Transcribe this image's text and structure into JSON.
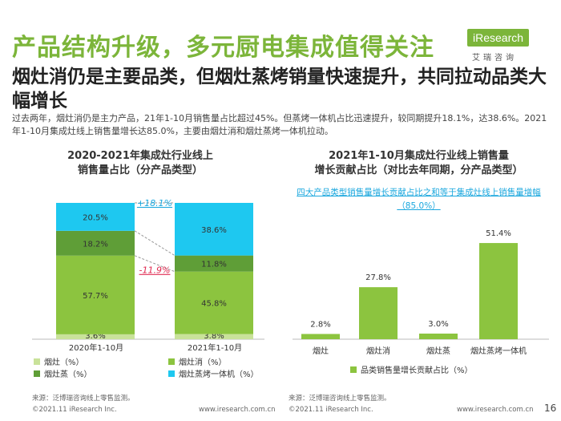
{
  "page": {
    "title": "产品结构升级，多元厨电集成值得关注",
    "subtitle": "烟灶消仍是主要品类，但烟灶蒸烤销量快速提升，共同拉动品类大幅增长",
    "description": "过去两年，烟灶消仍是主力产品，21年1-10月销售量占比超过45%。但蒸烤一体机占比迅速提升，较同期提升18.1%，达38.6%。2021年1-10月集成灶线上销售量增长达85.0%，主要由烟灶消和烟灶蒸烤一体机拉动。",
    "page_number": "16"
  },
  "logo": {
    "text": "iResearch",
    "cn": "艾瑞咨询"
  },
  "footer": {
    "copyright_left": "©2021.11 iResearch Inc.",
    "url_left": "www.iresearch.com.cn",
    "copyright_right": "©2021.11 iResearch Inc.",
    "url_right": "www.iresearch.com.cn"
  },
  "colors": {
    "brand_green": "#7cb53a",
    "light_green": "#8cc43f",
    "dark_green": "#5f9e37",
    "cyan": "#1ec8f0",
    "pale_green": "#c9e29a",
    "accent_blue": "#1aa7de",
    "accent_red": "#e0284f"
  },
  "chart_data": [
    {
      "type": "bar",
      "stacked": true,
      "title_line1": "2020-2021年集成灶行业线上",
      "title_line2": "销售量占比（分产品类型）",
      "categories": [
        "2020年1-10月",
        "2021年1-10月"
      ],
      "series": [
        {
          "name": "烟灶（%）",
          "values": [
            3.6,
            3.8
          ],
          "labels": [
            "3.6%",
            "3.8%"
          ],
          "color": "#c9e29a"
        },
        {
          "name": "烟灶消（%）",
          "values": [
            57.7,
            45.8
          ],
          "labels": [
            "57.7%",
            "45.8%"
          ],
          "color": "#8cc43f"
        },
        {
          "name": "烟灶蒸（%）",
          "values": [
            18.2,
            11.8
          ],
          "labels": [
            "18.2%",
            "11.8%"
          ],
          "color": "#5f9e37"
        },
        {
          "name": "烟灶蒸烤一体机（%）",
          "values": [
            20.5,
            38.6
          ],
          "labels": [
            "20.5%",
            "38.6%"
          ],
          "color": "#1ec8f0"
        }
      ],
      "annotations": [
        {
          "text": "+18.1%",
          "color": "#1aa7de"
        },
        {
          "text": "-11.9%",
          "color": "#e0284f"
        }
      ],
      "source": "来源：泛博瑞咨询线上零售监测。"
    },
    {
      "type": "bar",
      "title_line1": "2021年1-10月集成灶行业线上销售量",
      "title_line2": "增长贡献占比（对比去年同期，分产品类型）",
      "note_line1": "四大产品类型销售量增长贡献占比之和等于集成灶线上销售量增幅",
      "note_line2": "（85.0%）",
      "categories": [
        "烟灶",
        "烟灶消",
        "烟灶蒸",
        "烟灶蒸烤一体机"
      ],
      "series": [
        {
          "name": "品类销售量增长贡献占比（%）",
          "values": [
            2.8,
            27.8,
            3.0,
            51.4
          ],
          "labels": [
            "2.8%",
            "27.8%",
            "3.0%",
            "51.4%"
          ],
          "color": "#8cc43f"
        }
      ],
      "ylim": [
        0,
        60
      ],
      "source": "来源：泛博瑞咨询线上零售监测。"
    }
  ]
}
